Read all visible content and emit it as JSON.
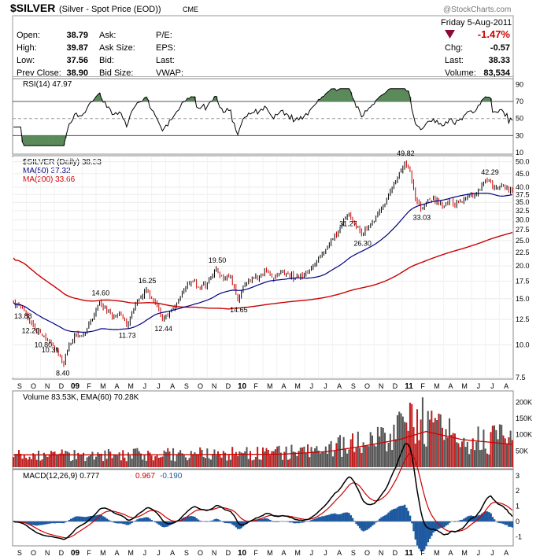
{
  "header": {
    "symbol": "$SILVER",
    "description": "(Silver - Spot Price (EOD))",
    "exchange": "CME",
    "watermark": "@StockCharts.com",
    "date": "Friday  5-Aug-2011",
    "change_pct": "-1.47%",
    "arrow": "down-triangle-icon",
    "fields": [
      {
        "label": "Open:",
        "value": "38.79"
      },
      {
        "label": "High:",
        "value": "39.87"
      },
      {
        "label": "Low:",
        "value": "37.56"
      },
      {
        "label": "Prev Close:",
        "value": "38.90"
      }
    ],
    "mid_labels": [
      "Ask:",
      "Ask Size:",
      "Bid:",
      "Bid Size:"
    ],
    "right_labels": [
      "P/E:",
      "EPS:",
      "Last:",
      "VWAP:"
    ],
    "far_right": [
      {
        "label": "Chg:",
        "value": "-0.57"
      },
      {
        "label": "Last:",
        "value": "38.33"
      },
      {
        "label": "Volume:",
        "value": "83,534"
      }
    ]
  },
  "colors": {
    "up": "#000000",
    "down": "#cc0000",
    "ma50": "#000080",
    "ma200": "#cc0000",
    "rsi_fill": "#5a8a5a",
    "macd_hist": "#1f5aa0",
    "signal": "#cc0000",
    "title_red": "#cc0000",
    "arrow": "#8b0a32"
  },
  "chart_data": [
    {
      "type": "line",
      "title": "RSI(14) 47.97",
      "yticks": [
        10,
        30,
        50,
        70,
        90
      ],
      "ylim": [
        10,
        95
      ],
      "overbought": 70,
      "oversold": 30,
      "last": 47.97
    },
    {
      "type": "line",
      "title": "$SILVER (Daily) 38.33",
      "legend": [
        "$SILVER (Daily) 38.33",
        "MA(50) 37.32",
        "MA(200) 33.66"
      ],
      "scale": "log",
      "ylim": [
        7.5,
        52
      ],
      "yticks": [
        7.5,
        10.0,
        12.5,
        15.0,
        17.5,
        20.0,
        22.5,
        25.0,
        27.5,
        30.0,
        32.5,
        35.0,
        37.5,
        40.0,
        45.0,
        50.0
      ],
      "x_labels": [
        "S",
        "O",
        "N",
        "D",
        "09",
        "F",
        "M",
        "A",
        "M",
        "J",
        "J",
        "A",
        "S",
        "O",
        "N",
        "D",
        "10",
        "F",
        "M",
        "A",
        "M",
        "J",
        "J",
        "A",
        "S",
        "O",
        "N",
        "D",
        "11",
        "F",
        "M",
        "A",
        "M",
        "J",
        "J",
        "A"
      ],
      "price_anchors": {
        "x": [
          0,
          4,
          9,
          12,
          16,
          20,
          25,
          28,
          31,
          34,
          38,
          41,
          45,
          48,
          52,
          56,
          60,
          63,
          66,
          70,
          74,
          79,
          83,
          88,
          91,
          95,
          100,
          104,
          108,
          113,
          117,
          121,
          125,
          129,
          133,
          137,
          141,
          145,
          149,
          153,
          157,
          162,
          166,
          170,
          174,
          178,
          182,
          186,
          190,
          194,
          198,
          202,
          206,
          209,
          212,
          215,
          218,
          221,
          224,
          227,
          230,
          234,
          237,
          240,
          243,
          246,
          249,
          252,
          256,
          259,
          262,
          265,
          268,
          271,
          274,
          278
        ],
        "close": [
          14.5,
          13.88,
          12.2,
          11.5,
          10.8,
          10.31,
          9.2,
          8.4,
          10.0,
          10.9,
          10.8,
          11.6,
          13.0,
          14.6,
          13.4,
          12.8,
          13.0,
          11.73,
          13.4,
          15.0,
          16.25,
          14.4,
          12.44,
          13.5,
          14.5,
          16.2,
          17.5,
          16.5,
          17.2,
          19.5,
          17.8,
          18.3,
          14.65,
          17.0,
          17.8,
          18.3,
          19.2,
          17.8,
          19.0,
          18.6,
          18.0,
          18.5,
          19.7,
          21.5,
          23.2,
          25.5,
          28.0,
          31.27,
          29.0,
          26.3,
          28.5,
          31.0,
          34.0,
          37.5,
          41.0,
          45.5,
          49.82,
          46.0,
          36.0,
          33.03,
          35.0,
          36.5,
          34.5,
          34.0,
          35.5,
          34.0,
          35.3,
          36.5,
          37.0,
          39.0,
          41.5,
          42.29,
          40.0,
          40.5,
          39.5,
          38.33
        ]
      },
      "annotations": [
        {
          "label": "13.88",
          "value": 13.88
        },
        {
          "label": "12.20",
          "value": 12.2
        },
        {
          "label": "10.80",
          "value": 10.8
        },
        {
          "label": "10.31",
          "value": 10.31
        },
        {
          "label": "8.40",
          "value": 8.4
        },
        {
          "label": "14.60",
          "value": 14.6
        },
        {
          "label": "11.73",
          "value": 11.73
        },
        {
          "label": "16.25",
          "value": 16.25
        },
        {
          "label": "12.44",
          "value": 12.44
        },
        {
          "label": "19.50",
          "value": 19.5
        },
        {
          "label": "14.65",
          "value": 14.65
        },
        {
          "label": "31.27",
          "value": 31.27
        },
        {
          "label": "26.30",
          "value": 26.3
        },
        {
          "label": "49.82",
          "value": 49.82
        },
        {
          "label": "33.03",
          "value": 33.03
        },
        {
          "label": "42.29",
          "value": 42.29
        }
      ]
    },
    {
      "type": "bar",
      "title": "Volume 83.53K, EMA(60) 70.28K",
      "yticks": [
        "50K",
        "100K",
        "150K",
        "200K"
      ],
      "ytick_values": [
        50000,
        100000,
        150000,
        200000
      ],
      "ylim": [
        0,
        230000
      ],
      "volume_anchors": {
        "x": [
          0,
          30,
          60,
          100,
          140,
          170,
          185,
          200,
          210,
          220,
          225,
          230,
          250,
          278
        ],
        "level": [
          35000,
          40000,
          38000,
          40000,
          42000,
          48000,
          70000,
          80000,
          100000,
          130000,
          160000,
          120000,
          90000,
          83530
        ]
      },
      "ema_anchors": {
        "x": [
          0,
          60,
          150,
          175,
          195,
          215,
          230,
          250,
          278
        ],
        "level": [
          38000,
          38000,
          40000,
          48000,
          65000,
          85000,
          110000,
          85000,
          70280
        ]
      }
    },
    {
      "type": "line",
      "title": "MACD(12,26,9) 0.777, 0.967, -0.190",
      "legend": [
        "MACD(12,26,9) 0.777",
        "0.967",
        "-0.190"
      ],
      "ylim": [
        -1.5,
        3.3
      ],
      "yticks": [
        -1,
        0,
        1,
        2,
        3
      ]
    }
  ]
}
